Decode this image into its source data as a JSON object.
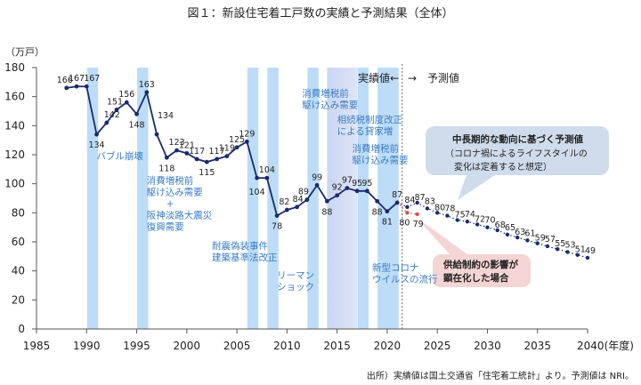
{
  "chart_data": {
    "type": "line",
    "title": "図１：新設住宅着工戸数の実績と予測結果（全体）",
    "ylabel": "（万戸）",
    "xlabel": "(年度)",
    "ylim": [
      0,
      180
    ],
    "xlim": [
      1985,
      2040
    ],
    "y_ticks": [
      "0",
      "20",
      "40",
      "60",
      "80",
      "100",
      "120",
      "140",
      "160",
      "180"
    ],
    "x_ticks": [
      "1985",
      "1990",
      "1995",
      "2000",
      "2005",
      "2010",
      "2015",
      "2020",
      "2025",
      "2030",
      "2035",
      "2040"
    ],
    "series": [
      {
        "name": "実績値",
        "color": "#1a2a6c",
        "style": "solid",
        "x": [
          1988,
          1989,
          1990,
          1991,
          1992,
          1993,
          1994,
          1995,
          1996,
          1997,
          1998,
          1999,
          2000,
          2001,
          2002,
          2003,
          2004,
          2005,
          2006,
          2007,
          2008,
          2009,
          2010,
          2011,
          2012,
          2013,
          2014,
          2015,
          2016,
          2017,
          2018,
          2019,
          2020,
          2021
        ],
        "values": [
          166,
          167,
          167,
          134,
          142,
          151,
          156,
          148,
          163,
          134,
          118,
          123,
          121,
          117,
          115,
          117,
          119,
          125,
          129,
          104,
          104,
          78,
          82,
          84,
          89,
          99,
          88,
          92,
          97,
          95,
          95,
          88,
          81,
          87
        ]
      },
      {
        "name": "中長期的な動向に基づく予測値",
        "color": "#1a2a6c",
        "style": "dotted",
        "x": [
          2021,
          2022,
          2023,
          2024,
          2025,
          2026,
          2027,
          2028,
          2029,
          2030,
          2031,
          2032,
          2033,
          2034,
          2035,
          2036,
          2037,
          2038,
          2039,
          2040
        ],
        "values": [
          87,
          84,
          87,
          83,
          80,
          78,
          75,
          74,
          72,
          70,
          68,
          65,
          63,
          61,
          59,
          57,
          55,
          53,
          51,
          49
        ]
      },
      {
        "name": "供給制約の影響が顕在化した場合",
        "color": "#d9534f",
        "style": "dotted",
        "x": [
          2021,
          2022,
          2023
        ],
        "values": [
          87,
          80,
          79
        ]
      }
    ],
    "shaded_periods": [
      {
        "from": 1990,
        "to": 1991
      },
      {
        "from": 1995,
        "to": 1996
      },
      {
        "from": 2006,
        "to": 2007
      },
      {
        "from": 2008,
        "to": 2009
      },
      {
        "from": 2012,
        "to": 2013
      },
      {
        "from": 2014,
        "to": 2017,
        "tint": "lavender"
      },
      {
        "from": 2017,
        "to": 2018
      },
      {
        "from": 2019,
        "to": 2021
      }
    ],
    "split_year": 2021.5,
    "split_labels": {
      "left": "実績値←",
      "right": "→　予測値"
    },
    "annotations": [
      {
        "lines": [
          "バブル崩壊"
        ],
        "year": 1991,
        "value": 117
      },
      {
        "lines": [
          "消費増税前",
          "駆け込み需要",
          "+",
          "阪神淡路大震災",
          "復興需要"
        ],
        "year": 1996,
        "value": 100
      },
      {
        "lines": [
          "耐震偽装事件",
          "建築基準法改正"
        ],
        "year": 2002.5,
        "value": 55
      },
      {
        "lines": [
          "リーマン",
          "ショック"
        ],
        "year": 2009,
        "value": 35
      },
      {
        "lines": [
          "消費増税前",
          "駆け込み需要"
        ],
        "year": 2011.5,
        "value": 160
      },
      {
        "lines": [
          "相続税制度改正",
          "による貸家増"
        ],
        "year": 2015,
        "value": 142
      },
      {
        "lines": [
          "消費増税前",
          "駆け込み需要"
        ],
        "year": 2016.5,
        "value": 122
      },
      {
        "lines": [
          "新型コロナ",
          "ウイルスの流行"
        ],
        "year": 2018.5,
        "value": 40
      }
    ],
    "callouts": {
      "forecast": {
        "bold": "中長期的な動向に基づく予測値",
        "lines": [
          "（コロナ禍によるライフスタイルの",
          "　変化は定着すると想定）"
        ],
        "color": "#cfdcec"
      },
      "constraint": {
        "lines": [
          "供給制約の影響が",
          "顕在化した場合"
        ],
        "color": "#f4d4d4"
      }
    },
    "source": "出所）実績値は国土交通省「住宅着工統計」より。予測値は NRI。"
  }
}
